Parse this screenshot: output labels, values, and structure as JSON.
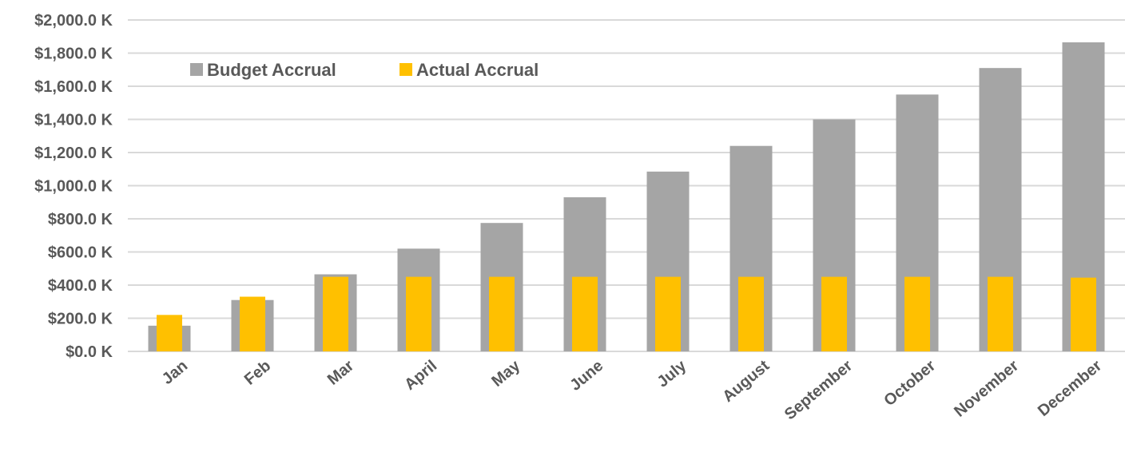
{
  "chart_data": {
    "type": "bar",
    "categories": [
      "Jan",
      "Feb",
      "Mar",
      "April",
      "May",
      "June",
      "July",
      "August",
      "September",
      "October",
      "November",
      "December"
    ],
    "series": [
      {
        "name": "Budget Accrual",
        "color": "#a5a5a5",
        "values": [
          155,
          310,
          465,
          620,
          775,
          930,
          1085,
          1240,
          1400,
          1550,
          1710,
          1865
        ]
      },
      {
        "name": "Actual Accrual",
        "color": "#ffc000",
        "values": [
          220,
          330,
          450,
          450,
          450,
          450,
          450,
          450,
          450,
          450,
          450,
          445
        ]
      }
    ],
    "ylim": [
      0,
      2000
    ],
    "y_ticks": [
      0,
      200,
      400,
      600,
      800,
      1000,
      1200,
      1400,
      1600,
      1800,
      2000
    ],
    "y_tick_labels": [
      "$0.0 K",
      "$200.0 K",
      "$400.0 K",
      "$600.0 K",
      "$800.0 K",
      "$1,000.0 K",
      "$1,200.0 K",
      "$1,400.0 K",
      "$1,600.0 K",
      "$1,800.0 K",
      "$2,000.0 K"
    ],
    "grid": true,
    "legend_position": "top-left",
    "title": "",
    "xlabel": "",
    "ylabel": ""
  },
  "colors": {
    "gridline": "#d9d9d9",
    "text": "#595959"
  }
}
